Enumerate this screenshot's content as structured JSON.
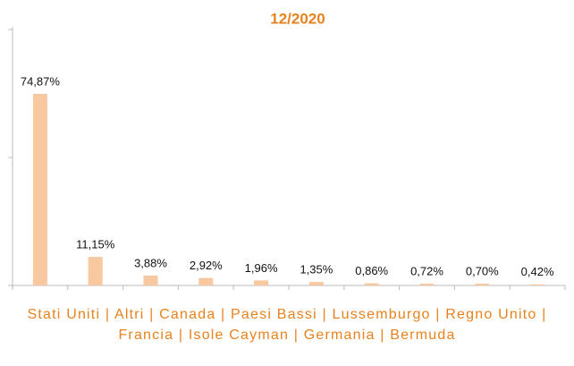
{
  "chart_data": {
    "type": "bar",
    "title": "12/2020",
    "categories": [
      null,
      null,
      null,
      null,
      null,
      null,
      null,
      null,
      null,
      null
    ],
    "values": [
      74.87,
      11.15,
      3.88,
      2.92,
      1.96,
      1.35,
      0.86,
      0.72,
      0.7,
      0.42
    ],
    "value_labels": [
      "74,87%",
      "11,15%",
      "3,88%",
      "2,92%",
      "1,96%",
      "1,35%",
      "0,86%",
      "0,72%",
      "0,70%",
      "0,42%"
    ],
    "x_label": "Stati Uniti | Altri | Canada | Paesi Bassi | Lussemburgo | Regno Unito | Francia | Isole Cayman | Germania | Bermuda",
    "color": "#f8c8a0",
    "ylim": [
      0,
      100
    ],
    "yticks": [
      0,
      50,
      100
    ],
    "grid": false
  }
}
